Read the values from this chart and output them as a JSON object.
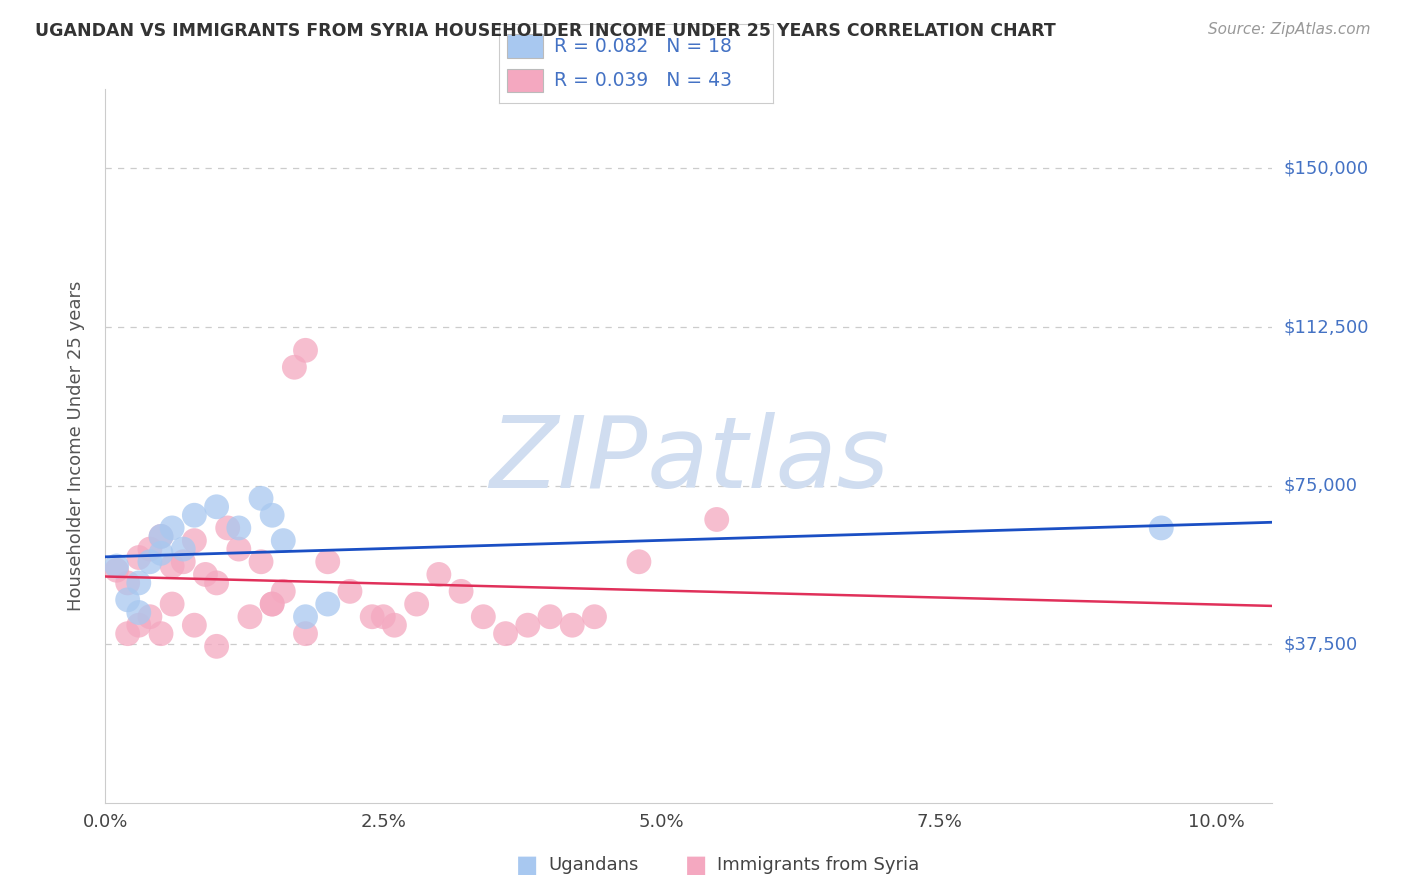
{
  "title": "UGANDAN VS IMMIGRANTS FROM SYRIA HOUSEHOLDER INCOME UNDER 25 YEARS CORRELATION CHART",
  "source": "Source: ZipAtlas.com",
  "ylabel": "Householder Income Under 25 years",
  "xlim": [
    0.0,
    0.105
  ],
  "ylim": [
    0,
    168750
  ],
  "xtick_labels": [
    "0.0%",
    "",
    "2.5%",
    "",
    "5.0%",
    "",
    "7.5%",
    "",
    "10.0%"
  ],
  "xtick_values": [
    0.0,
    0.0125,
    0.025,
    0.0375,
    0.05,
    0.0625,
    0.075,
    0.0875,
    0.1
  ],
  "xtick_display": [
    "0.0%",
    "2.5%",
    "5.0%",
    "7.5%",
    "10.0%"
  ],
  "xtick_display_vals": [
    0.0,
    0.025,
    0.05,
    0.075,
    0.1
  ],
  "ytick_labels": [
    "$37,500",
    "$75,000",
    "$112,500",
    "$150,000"
  ],
  "ytick_values": [
    37500,
    75000,
    112500,
    150000
  ],
  "ugandan_color": "#a8c8f0",
  "syria_color": "#f4a8c0",
  "ugandan_R": 0.082,
  "ugandan_N": 18,
  "syria_R": 0.039,
  "syria_N": 43,
  "regression_blue": "#1a4fc4",
  "regression_pink": "#e0305a",
  "legend_label_ugandan": "Ugandans",
  "legend_label_syria": "Immigrants from Syria",
  "ugandan_x": [
    0.001,
    0.002,
    0.003,
    0.004,
    0.005,
    0.006,
    0.008,
    0.01,
    0.012,
    0.014,
    0.015,
    0.016,
    0.018,
    0.02,
    0.003,
    0.005,
    0.007,
    0.095
  ],
  "ugandan_y": [
    56000,
    48000,
    52000,
    57000,
    63000,
    65000,
    68000,
    70000,
    65000,
    72000,
    68000,
    62000,
    44000,
    47000,
    45000,
    59000,
    60000,
    65000
  ],
  "syria_x": [
    0.001,
    0.002,
    0.003,
    0.004,
    0.005,
    0.006,
    0.007,
    0.008,
    0.009,
    0.01,
    0.011,
    0.012,
    0.013,
    0.014,
    0.015,
    0.016,
    0.017,
    0.018,
    0.02,
    0.022,
    0.024,
    0.026,
    0.028,
    0.03,
    0.032,
    0.034,
    0.036,
    0.038,
    0.04,
    0.042,
    0.044,
    0.048,
    0.002,
    0.003,
    0.004,
    0.005,
    0.006,
    0.008,
    0.01,
    0.015,
    0.018,
    0.025,
    0.055
  ],
  "syria_y": [
    55000,
    52000,
    58000,
    60000,
    63000,
    56000,
    57000,
    62000,
    54000,
    52000,
    65000,
    60000,
    44000,
    57000,
    47000,
    50000,
    103000,
    107000,
    57000,
    50000,
    44000,
    42000,
    47000,
    54000,
    50000,
    44000,
    40000,
    42000,
    44000,
    42000,
    44000,
    57000,
    40000,
    42000,
    44000,
    40000,
    47000,
    42000,
    37000,
    47000,
    40000,
    44000,
    67000
  ],
  "watermark_text": "ZIPatlas",
  "watermark_color": "#d0ddf0",
  "watermark_fontsize": 72
}
